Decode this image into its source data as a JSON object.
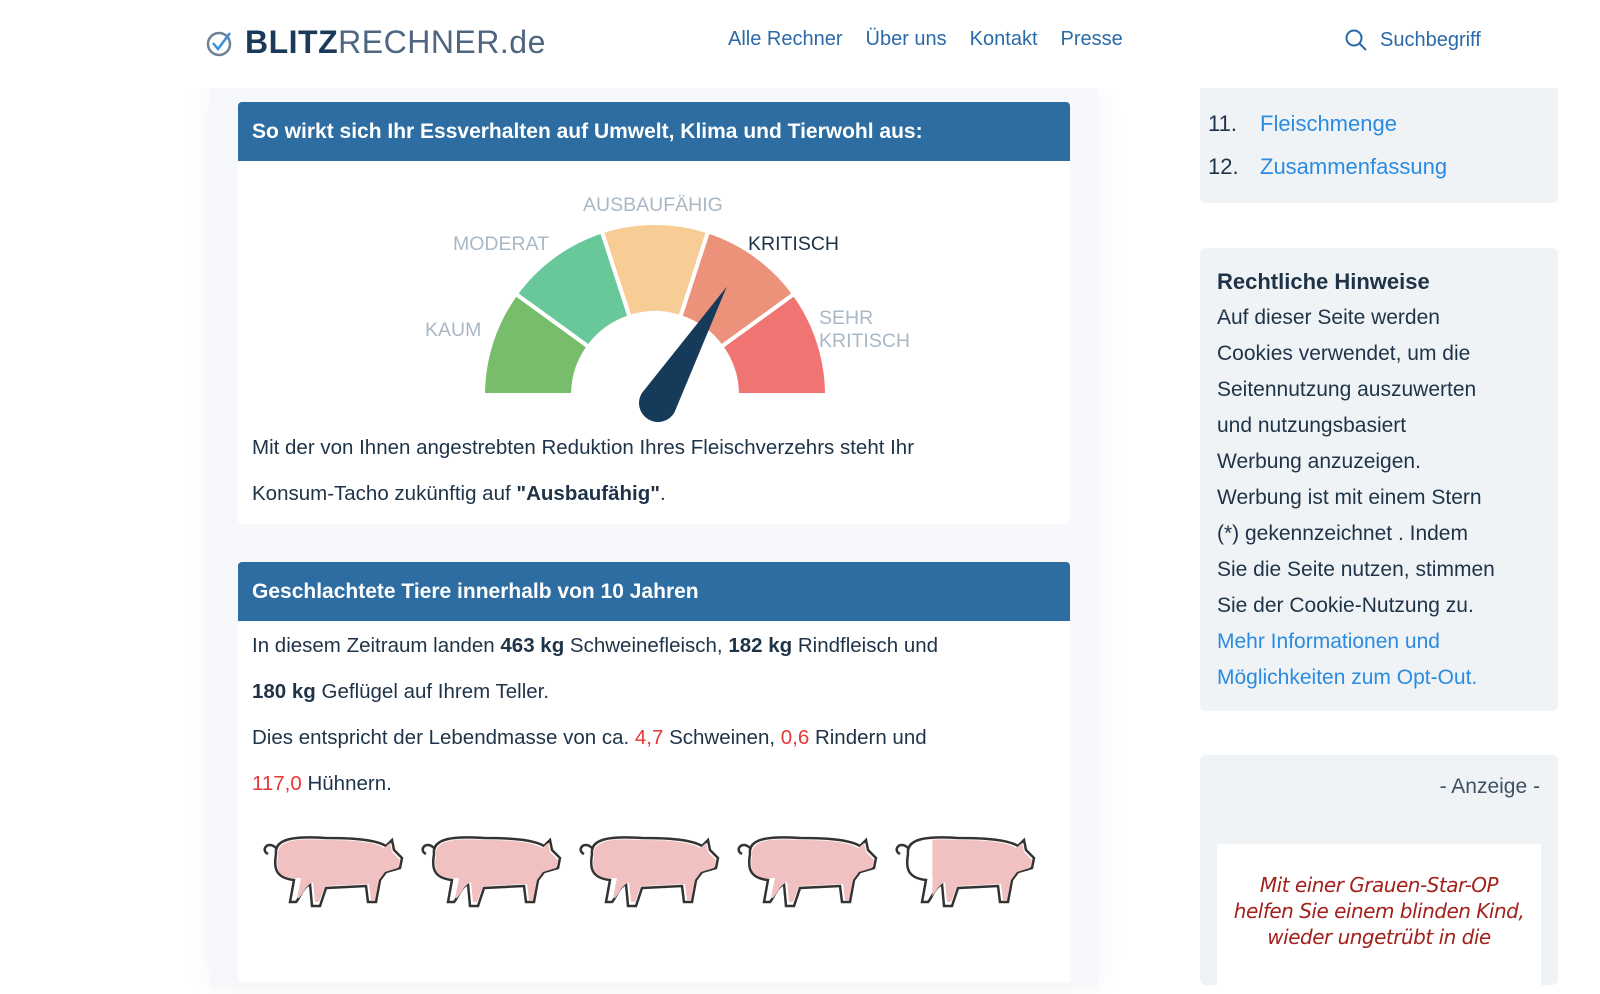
{
  "header": {
    "logo_bold": "BLITZ",
    "logo_rest": "RECHNER.de",
    "nav": [
      "Alle Rechner",
      "Über uns",
      "Kontakt",
      "Presse"
    ],
    "search_label": "Suchbegriff"
  },
  "toc": [
    {
      "num": "11.",
      "label": "Fleischmenge"
    },
    {
      "num": "12.",
      "label": "Zusammenfassung"
    }
  ],
  "card1": {
    "title": "So wirkt sich Ihr Essverhalten auf Umwelt, Klima und Tierwohl aus:",
    "gauge": {
      "labels": [
        "KAUM",
        "MODERAT",
        "AUSBAUFÄHIG",
        "KRITISCH",
        "SEHR",
        "KRITISCH"
      ],
      "colors": [
        "#77bd6b",
        "#68c89a",
        "#f7cd95",
        "#ec917a",
        "#f07572"
      ],
      "needle_color": "#153a5a",
      "needle_value": 0.67
    },
    "text1": "Mit der von Ihnen angestrebten Reduktion Ihres Fleischverzehrs steht Ihr",
    "text2": "Konsum-Tacho zukünftig auf ",
    "text2_bold": "\"Ausbaufähig\"",
    "text2_end": "."
  },
  "card2": {
    "title": "Geschlachtete Tiere innerhalb von 10 Jahren",
    "p1": [
      "In diesem Zeitraum landen ",
      "463 kg",
      " Schweinefleisch, ",
      "182 kg",
      " Rindfleisch und"
    ],
    "p2": [
      "180 kg",
      " Geflügel auf Ihrem Teller."
    ],
    "p3": [
      "Dies entspricht der Lebendmasse von ca. ",
      "4,7",
      " Schweinen, ",
      "0,6",
      " Rindern und"
    ],
    "p4": [
      "117,0",
      " Hühnern."
    ],
    "pigs": [
      1,
      1,
      1,
      1,
      0.7
    ]
  },
  "legal": {
    "title": "Rechtliche Hinweise",
    "lines": [
      "Auf dieser Seite werden",
      "Cookies verwendet, um die",
      "Seitennutzung auszuwerten",
      "und nutzungsbasiert",
      "Werbung anzuzeigen.",
      "Werbung ist mit einem Stern",
      "(*) gekennzeichnet . Indem",
      "Sie die Seite nutzen, stimmen",
      "Sie der Cookie-Nutzung zu."
    ],
    "link_lines": [
      "Mehr Informationen und",
      "Möglichkeiten zum Opt-Out."
    ]
  },
  "ad": {
    "label": "- Anzeige -",
    "lines": [
      "Mit einer Grauen-Star-OP",
      "helfen Sie einem blinden Kind,",
      "wieder ungetrübt in die"
    ]
  }
}
